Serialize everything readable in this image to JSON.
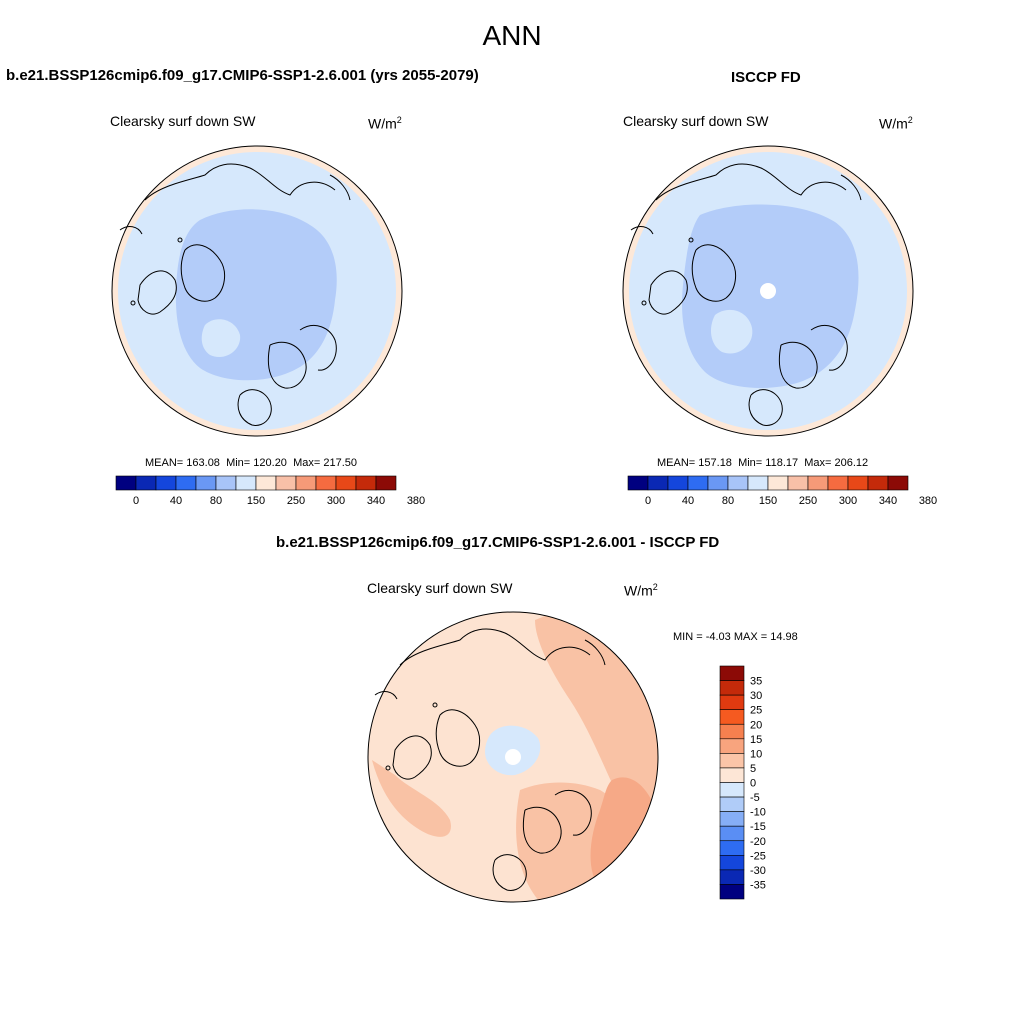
{
  "page": {
    "title": "ANN"
  },
  "colors": {
    "ocean": "#d6e8fc",
    "arctic": "#b3ccf9",
    "ice_blue": "#d6e8fc",
    "warm_rim": "#fde8d8",
    "diff_base": "#fde3d1",
    "diff_mid": "#f9c2a5",
    "diff_strong": "#f6a987",
    "coast": "#000000"
  },
  "panels": {
    "model": {
      "title": "b.e21.BSSP126cmip6.f09_g17.CMIP6-SSP1-2.6.001 (yrs 2055-2079)",
      "variable": "Clearsky surf down SW",
      "units_base": "W/m",
      "units_exp": "2",
      "stats": {
        "mean_label": "MEAN=",
        "mean": "163.08",
        "min_label": "Min=",
        "min": "120.20",
        "max_label": "Max=",
        "max": "217.50"
      }
    },
    "obs": {
      "title": "ISCCP FD",
      "variable": "Clearsky surf down SW",
      "units_base": "W/m",
      "units_exp": "2",
      "stats": {
        "mean_label": "MEAN=",
        "mean": "157.18",
        "min_label": "Min=",
        "min": "118.17",
        "max_label": "Max=",
        "max": "206.12"
      }
    },
    "diff": {
      "title": "b.e21.BSSP126cmip6.f09_g17.CMIP6-SSP1-2.6.001 - ISCCP FD",
      "variable": "Clearsky surf down SW",
      "units_base": "W/m",
      "units_exp": "2",
      "stats": {
        "min_label": "MIN =",
        "min": "-4.03",
        "max_label": "MAX =",
        "max": "14.98"
      }
    }
  },
  "colorbar_horizontal": {
    "colors": [
      "#000080",
      "#0a28b4",
      "#1446dc",
      "#2e6cf2",
      "#6a98f4",
      "#a8c4f8",
      "#d6e8fc",
      "#fde8d8",
      "#f8c0a8",
      "#f69a78",
      "#f56b40",
      "#e84818",
      "#c42a0a",
      "#8c0a06"
    ],
    "ticks": [
      "0",
      "40",
      "80",
      "150",
      "250",
      "300",
      "340",
      "380"
    ]
  },
  "colorbar_vertical": {
    "colors_top_to_bottom": [
      "#8c0a06",
      "#c42a0a",
      "#e03a10",
      "#f55a20",
      "#f6804f",
      "#f8a47e",
      "#fbc5a8",
      "#fde6d6",
      "#d6e8fc",
      "#b0ccf8",
      "#86aef6",
      "#5a8ef4",
      "#2e6cf2",
      "#1446dc",
      "#0a28b4",
      "#000080"
    ],
    "labels": [
      "35",
      "30",
      "25",
      "20",
      "15",
      "10",
      "5",
      "0",
      "-5",
      "-10",
      "-15",
      "-20",
      "-25",
      "-30",
      "-35"
    ]
  },
  "chart_data": [
    {
      "type": "heatmap",
      "projection": "north polar stereographic",
      "title": "b.e21.BSSP126cmip6.f09_g17.CMIP6-SSP1-2.6.001 (yrs 2055-2079)",
      "variable": "Clearsky surf down SW",
      "units": "W/m2",
      "mean": 163.08,
      "min": 120.2,
      "max": 217.5,
      "levels": [
        0,
        20,
        40,
        60,
        80,
        100,
        150,
        200,
        250,
        275,
        300,
        320,
        340,
        360,
        380
      ]
    },
    {
      "type": "heatmap",
      "projection": "north polar stereographic",
      "title": "ISCCP FD",
      "variable": "Clearsky surf down SW",
      "units": "W/m2",
      "mean": 157.18,
      "min": 118.17,
      "max": 206.12,
      "levels": [
        0,
        20,
        40,
        60,
        80,
        100,
        150,
        200,
        250,
        275,
        300,
        320,
        340,
        360,
        380
      ]
    },
    {
      "type": "heatmap",
      "projection": "north polar stereographic",
      "title": "b.e21.BSSP126cmip6.f09_g17.CMIP6-SSP1-2.6.001 - ISCCP FD",
      "variable": "Clearsky surf down SW",
      "units": "W/m2",
      "min": -4.03,
      "max": 14.98,
      "levels": [
        -35,
        -30,
        -25,
        -20,
        -15,
        -10,
        -5,
        0,
        5,
        10,
        15,
        20,
        25,
        30,
        35
      ]
    }
  ]
}
